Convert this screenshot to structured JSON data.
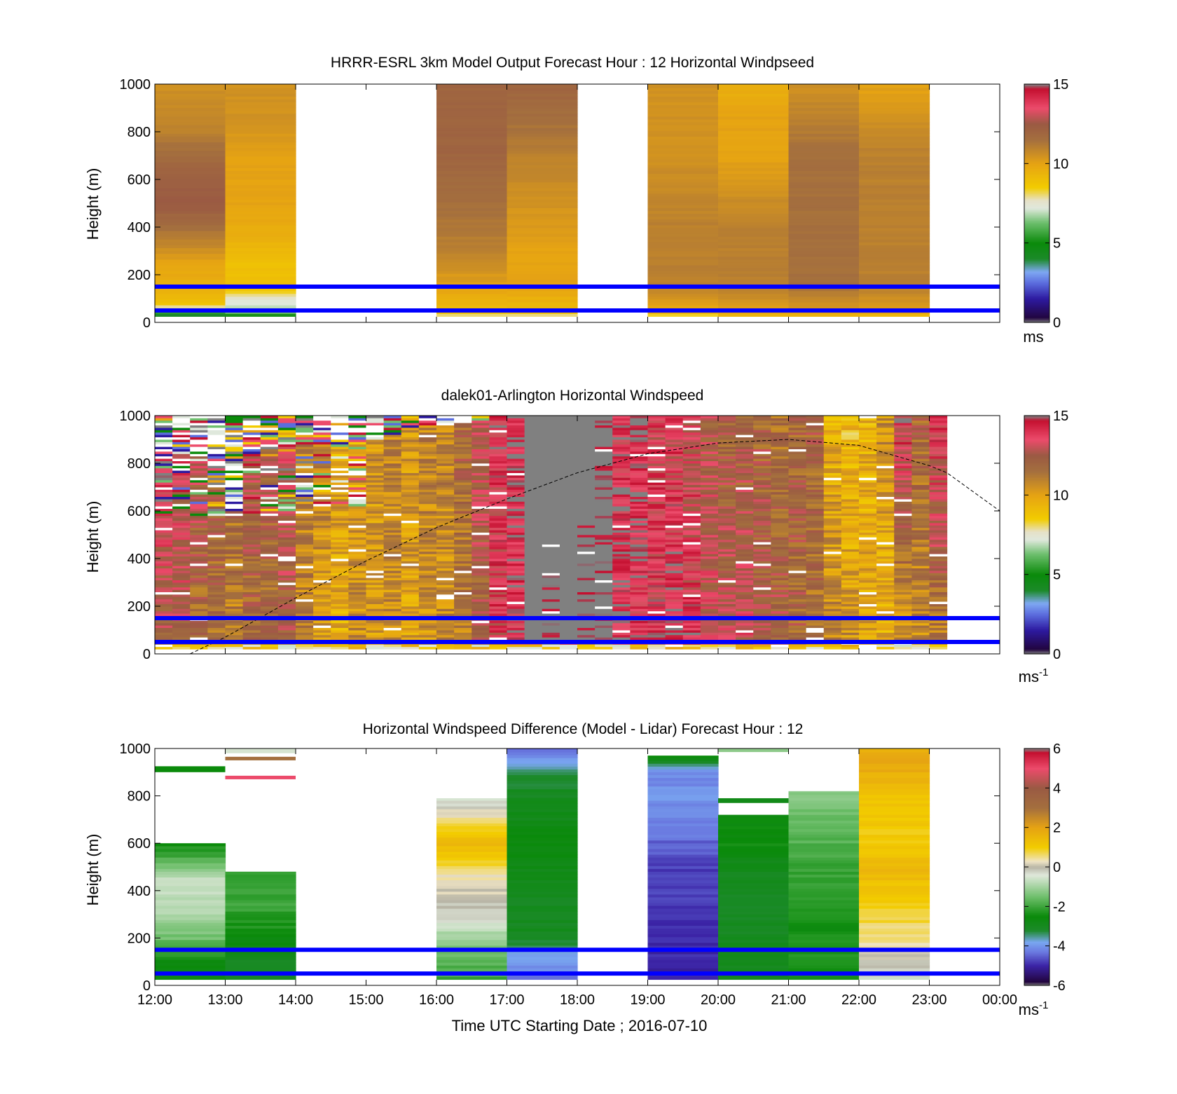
{
  "chart_data": [
    {
      "type": "heatmap",
      "title": "HRRR-ESRL 3km Model Output   Forecast Hour : 12 Horizontal Windpseed",
      "ylabel": "Height (m)",
      "xlabel": "",
      "xlim": [
        "12:00",
        "00:00"
      ],
      "ylim": [
        0,
        1000
      ],
      "y_ticks": [
        "0",
        "200",
        "400",
        "600",
        "800",
        "1000"
      ],
      "x_ticks": [
        "12:00",
        "13:00",
        "14:00",
        "15:00",
        "16:00",
        "17:00",
        "18:00",
        "19:00",
        "20:00",
        "21:00",
        "22:00",
        "23:00",
        "00:00"
      ],
      "colorbar": {
        "min": 0,
        "max": 15,
        "ticks": [
          "0",
          "5",
          "10",
          "15"
        ],
        "unit": "ms",
        "unit_sup": ""
      },
      "hlines": [
        50,
        150
      ],
      "columns": [
        {
          "hour": 0,
          "top": 1000,
          "bottom": 25,
          "profile": [
            [
              25,
              3.5
            ],
            [
              40,
              5
            ],
            [
              60,
              7.5
            ],
            [
              80,
              9
            ],
            [
              150,
              9.5
            ],
            [
              250,
              10
            ],
            [
              350,
              11
            ],
            [
              500,
              12.5
            ],
            [
              650,
              12
            ],
            [
              800,
              11
            ],
            [
              1000,
              10.5
            ]
          ]
        },
        {
          "hour": 1,
          "top": 1000,
          "bottom": 25,
          "profile": [
            [
              25,
              4.5
            ],
            [
              40,
              6
            ],
            [
              70,
              7
            ],
            [
              100,
              7.5
            ],
            [
              150,
              9
            ],
            [
              250,
              9
            ],
            [
              350,
              9.5
            ],
            [
              500,
              10
            ],
            [
              700,
              10
            ],
            [
              850,
              10.5
            ],
            [
              1000,
              10.5
            ]
          ]
        },
        {
          "hour": 4,
          "top": 1000,
          "bottom": 25,
          "profile": [
            [
              25,
              7.5
            ],
            [
              40,
              9
            ],
            [
              150,
              10
            ],
            [
              300,
              11
            ],
            [
              500,
              11.5
            ],
            [
              700,
              12
            ],
            [
              850,
              12
            ],
            [
              1000,
              12
            ]
          ]
        },
        {
          "hour": 5,
          "top": 1000,
          "bottom": 25,
          "profile": [
            [
              25,
              7.5
            ],
            [
              40,
              9
            ],
            [
              150,
              10
            ],
            [
              300,
              10
            ],
            [
              500,
              10.5
            ],
            [
              700,
              11
            ],
            [
              850,
              11.5
            ],
            [
              1000,
              12
            ]
          ]
        },
        {
          "hour": 7,
          "top": 1000,
          "bottom": 25,
          "profile": [
            [
              25,
              7.5
            ],
            [
              40,
              9.5
            ],
            [
              150,
              11
            ],
            [
              400,
              11
            ],
            [
              700,
              10.5
            ],
            [
              850,
              10.5
            ],
            [
              1000,
              10.5
            ]
          ]
        },
        {
          "hour": 8,
          "top": 1000,
          "bottom": 25,
          "profile": [
            [
              25,
              9
            ],
            [
              40,
              10
            ],
            [
              150,
              11
            ],
            [
              400,
              11
            ],
            [
              700,
              10
            ],
            [
              850,
              10
            ],
            [
              1000,
              9.5
            ]
          ]
        },
        {
          "hour": 9,
          "top": 1000,
          "bottom": 25,
          "profile": [
            [
              25,
              9
            ],
            [
              40,
              10
            ],
            [
              150,
              11.5
            ],
            [
              400,
              11.5
            ],
            [
              700,
              11.5
            ],
            [
              850,
              11
            ],
            [
              1000,
              10.5
            ]
          ]
        },
        {
          "hour": 10,
          "top": 1000,
          "bottom": 25,
          "profile": [
            [
              25,
              9
            ],
            [
              40,
              10
            ],
            [
              150,
              11
            ],
            [
              400,
              11
            ],
            [
              700,
              11
            ],
            [
              850,
              10.5
            ],
            [
              1000,
              10
            ]
          ]
        }
      ]
    },
    {
      "type": "heatmap",
      "title": "dalek01-Arlington  Horizontal Windspeed",
      "ylabel": "Height (m)",
      "xlabel": "",
      "xlim": [
        "12:00",
        "00:00"
      ],
      "ylim": [
        0,
        1000
      ],
      "y_ticks": [
        "0",
        "200",
        "400",
        "600",
        "800",
        "1000"
      ],
      "x_ticks": [],
      "colorbar": {
        "min": 0,
        "max": 15,
        "ticks": [
          "0",
          "5",
          "10",
          "15"
        ],
        "unit": "ms",
        "unit_sup": "-1"
      },
      "hlines": [
        50,
        150
      ],
      "curve": [
        [
          0.5,
          0
        ],
        [
          1,
          70
        ],
        [
          2,
          235
        ],
        [
          3,
          390
        ],
        [
          4,
          530
        ],
        [
          5,
          650
        ],
        [
          6,
          760
        ],
        [
          7,
          840
        ],
        [
          8,
          885
        ],
        [
          9,
          900
        ],
        [
          10,
          875
        ],
        [
          11,
          790
        ],
        [
          11.25,
          760
        ],
        [
          12,
          600
        ]
      ],
      "columns_hour_width": 0.25,
      "low_speed": [
        12,
        12.5,
        11.5,
        11.5,
        11,
        11.5,
        11.5,
        12,
        11,
        10,
        9.5,
        10.5,
        10,
        10.5,
        10,
        10.5,
        10.5,
        11,
        12,
        13.5,
        14,
        13.5,
        15.5,
        15.5,
        15.5,
        15.5,
        14.5,
        14,
        14,
        14.5,
        14,
        13,
        13,
        13,
        12.5,
        12.5,
        12,
        11.5,
        11,
        10.5,
        10,
        9.5,
        10,
        10.5,
        11
      ],
      "high_speed": [
        14.5,
        13.5,
        13,
        12.5,
        12,
        13,
        12.5,
        13,
        11,
        11,
        10.5,
        10.5,
        10.5,
        11,
        10.5,
        11,
        11,
        12,
        13,
        14,
        14.5,
        14,
        15.5,
        15.5,
        15.5,
        15.5,
        14,
        14.5,
        13.5,
        13.5,
        13,
        12.5,
        12,
        12,
        12,
        11.5,
        12,
        12,
        9.5,
        9,
        9.5,
        10.5,
        14,
        12,
        14
      ],
      "noise_top": [
        820,
        850,
        830,
        700,
        600,
        860,
        860,
        870,
        880,
        880,
        870,
        880,
        900,
        920,
        940,
        950,
        960,
        970,
        980,
        990,
        1000,
        1000,
        1000,
        1000,
        1000,
        1000,
        1000,
        1000,
        1000,
        1000,
        1000,
        1000,
        1000,
        1000,
        1000,
        1000,
        1000,
        1000,
        1000,
        1000,
        1000,
        1000,
        1000,
        1000,
        1000
      ],
      "gray_columns": [
        {
          "from": 21,
          "to": 25,
          "bottom": 60,
          "top": 1000
        }
      ]
    },
    {
      "type": "heatmap",
      "title": "Horizontal Windspeed Difference (Model - Lidar) Forecast Hour : 12",
      "ylabel": "Height (m)",
      "xlabel": "Time UTC  Starting Date ; 2016-07-10",
      "xlim": [
        "12:00",
        "00:00"
      ],
      "ylim": [
        0,
        1000
      ],
      "y_ticks": [
        "0",
        "200",
        "400",
        "600",
        "800",
        "1000"
      ],
      "x_ticks": [
        "12:00",
        "13:00",
        "14:00",
        "15:00",
        "16:00",
        "17:00",
        "18:00",
        "19:00",
        "20:00",
        "21:00",
        "22:00",
        "23:00",
        "00:00"
      ],
      "colorbar": {
        "min": -6,
        "max": 6,
        "ticks": [
          "-6",
          "-4",
          "-2",
          "0",
          "2",
          "4",
          "6"
        ],
        "unit": "ms",
        "unit_sup": "-1"
      },
      "hlines": [
        50,
        150
      ],
      "columns": [
        {
          "hour": 0,
          "top": 600,
          "bottom": 25,
          "profile": [
            [
              25,
              -2.5
            ],
            [
              100,
              -2.5
            ],
            [
              200,
              -1.5
            ],
            [
              350,
              -0.7
            ],
            [
              450,
              -0.7
            ],
            [
              550,
              -2
            ],
            [
              600,
              -2.5
            ]
          ],
          "extras": [
            [
              900,
              925,
              -2.5
            ]
          ]
        },
        {
          "hour": 1,
          "top": 480,
          "bottom": 25,
          "profile": [
            [
              25,
              -3
            ],
            [
              100,
              -3
            ],
            [
              200,
              -2.5
            ],
            [
              350,
              -2
            ],
            [
              480,
              -2.2
            ]
          ],
          "extras": [
            [
              870,
              885,
              5
            ],
            [
              950,
              965,
              3
            ],
            [
              980,
              1000,
              -0.5
            ]
          ]
        },
        {
          "hour": 4,
          "top": 790,
          "bottom": 25,
          "profile": [
            [
              25,
              -2
            ],
            [
              150,
              -1.5
            ],
            [
              300,
              -0.2
            ],
            [
              450,
              0.3
            ],
            [
              600,
              1.5
            ],
            [
              700,
              0.5
            ],
            [
              790,
              -0.5
            ]
          ]
        },
        {
          "hour": 5,
          "top": 1000,
          "bottom": 25,
          "profile": [
            [
              25,
              -4.3
            ],
            [
              100,
              -4
            ],
            [
              200,
              -3
            ],
            [
              400,
              -3
            ],
            [
              600,
              -2.6
            ],
            [
              800,
              -3
            ],
            [
              900,
              -3.2
            ],
            [
              960,
              -4
            ],
            [
              1000,
              -4.5
            ]
          ]
        },
        {
          "hour": 7,
          "top": 970,
          "bottom": 25,
          "profile": [
            [
              25,
              -5
            ],
            [
              100,
              -5
            ],
            [
              300,
              -4.8
            ],
            [
              500,
              -4.8
            ],
            [
              650,
              -4.3
            ],
            [
              800,
              -4
            ],
            [
              900,
              -4.2
            ],
            [
              970,
              -2.5
            ]
          ]
        },
        {
          "hour": 8,
          "top": 720,
          "bottom": 25,
          "profile": [
            [
              25,
              -3
            ],
            [
              200,
              -3
            ],
            [
              450,
              -3
            ],
            [
              600,
              -2.5
            ],
            [
              720,
              -2.5
            ]
          ],
          "extras": [
            [
              770,
              790,
              -2.8
            ],
            [
              985,
              1000,
              -1.2
            ]
          ]
        },
        {
          "hour": 9,
          "top": 820,
          "bottom": 25,
          "profile": [
            [
              25,
              -2.5
            ],
            [
              150,
              -2.3
            ],
            [
              250,
              -2.5
            ],
            [
              400,
              -2.2
            ],
            [
              600,
              -1.8
            ],
            [
              820,
              -1.2
            ]
          ]
        },
        {
          "hour": 10,
          "top": 1000,
          "bottom": 25,
          "profile": [
            [
              25,
              -0.5
            ],
            [
              100,
              0
            ],
            [
              200,
              0.5
            ],
            [
              350,
              1
            ],
            [
              500,
              1.5
            ],
            [
              600,
              1
            ],
            [
              800,
              1.2
            ],
            [
              950,
              2
            ],
            [
              1000,
              1.5
            ]
          ]
        }
      ]
    }
  ],
  "colormaps": {
    "speed": [
      [
        0,
        "#808080"
      ],
      [
        0.3,
        "#22053f"
      ],
      [
        1.5,
        "#2d1aa0"
      ],
      [
        2.5,
        "#5b6dde"
      ],
      [
        3.2,
        "#7fa8f2"
      ],
      [
        4,
        "#1c8a2a"
      ],
      [
        5,
        "#0a8a0a"
      ],
      [
        6.3,
        "#6ebf6e"
      ],
      [
        7.2,
        "#dfe8dc"
      ],
      [
        7.7,
        "#e6e1c8"
      ],
      [
        8.5,
        "#f2cc00"
      ],
      [
        10,
        "#e6a313"
      ],
      [
        11.5,
        "#a46f3e"
      ],
      [
        12.5,
        "#9a5a43"
      ],
      [
        13.5,
        "#ec4b6b"
      ],
      [
        14.7,
        "#c41030"
      ],
      [
        15,
        "#808080"
      ]
    ],
    "diff": [
      [
        -6,
        "#808080"
      ],
      [
        -5.8,
        "#22053f"
      ],
      [
        -5,
        "#3b23a5"
      ],
      [
        -4.3,
        "#6a79e0"
      ],
      [
        -3.8,
        "#79a6f0"
      ],
      [
        -3.2,
        "#1c8a2a"
      ],
      [
        -2.5,
        "#0a8a0a"
      ],
      [
        -1.5,
        "#6fbf6c"
      ],
      [
        -0.4,
        "#e0e8db"
      ],
      [
        0,
        "#b8b5a6"
      ],
      [
        0.3,
        "#efe4c4"
      ],
      [
        1,
        "#f2cc00"
      ],
      [
        2,
        "#e6a313"
      ],
      [
        3,
        "#a46f3e"
      ],
      [
        4,
        "#9a5a43"
      ],
      [
        5,
        "#ec4b6b"
      ],
      [
        5.8,
        "#c41030"
      ],
      [
        6,
        "#808080"
      ]
    ]
  },
  "hline_color": "#0000ff"
}
